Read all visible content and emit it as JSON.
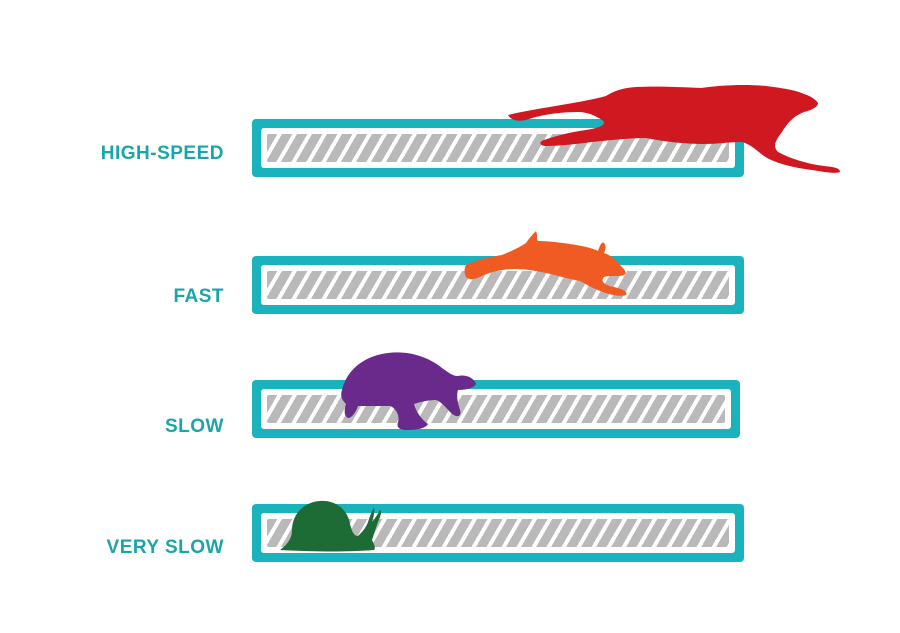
{
  "colors": {
    "accent": "#1ab3bd",
    "label": "#1ba5a8",
    "track_stripe": "#b9b9b9",
    "cheetah": "#d01820",
    "rabbit": "#f05a23",
    "tortoise": "#6a2a8c",
    "snail": "#1d6b35"
  },
  "rows": [
    {
      "label": "HIGH-SPEED",
      "animal": "cheetah-icon"
    },
    {
      "label": "FAST",
      "animal": "rabbit-icon"
    },
    {
      "label": "SLOW",
      "animal": "tortoise-icon"
    },
    {
      "label": "VERY SLOW",
      "animal": "snail-icon"
    }
  ]
}
